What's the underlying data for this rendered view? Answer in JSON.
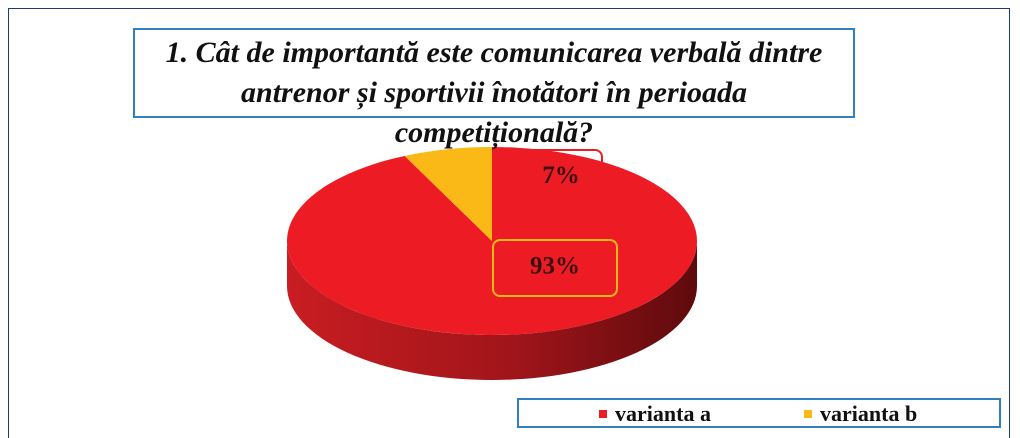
{
  "chart_data": {
    "type": "pie",
    "title": "1. Cât de importantă este comunicarea verbală dintre antrenor și sportivii înotători în perioada competițională?",
    "categories": [
      "varianta a",
      "varianta b"
    ],
    "values": [
      93,
      7
    ],
    "value_labels": [
      "93%",
      "7%"
    ],
    "colors": [
      "#ed1c24",
      "#fbb917"
    ],
    "legend": "bottom-right"
  }
}
